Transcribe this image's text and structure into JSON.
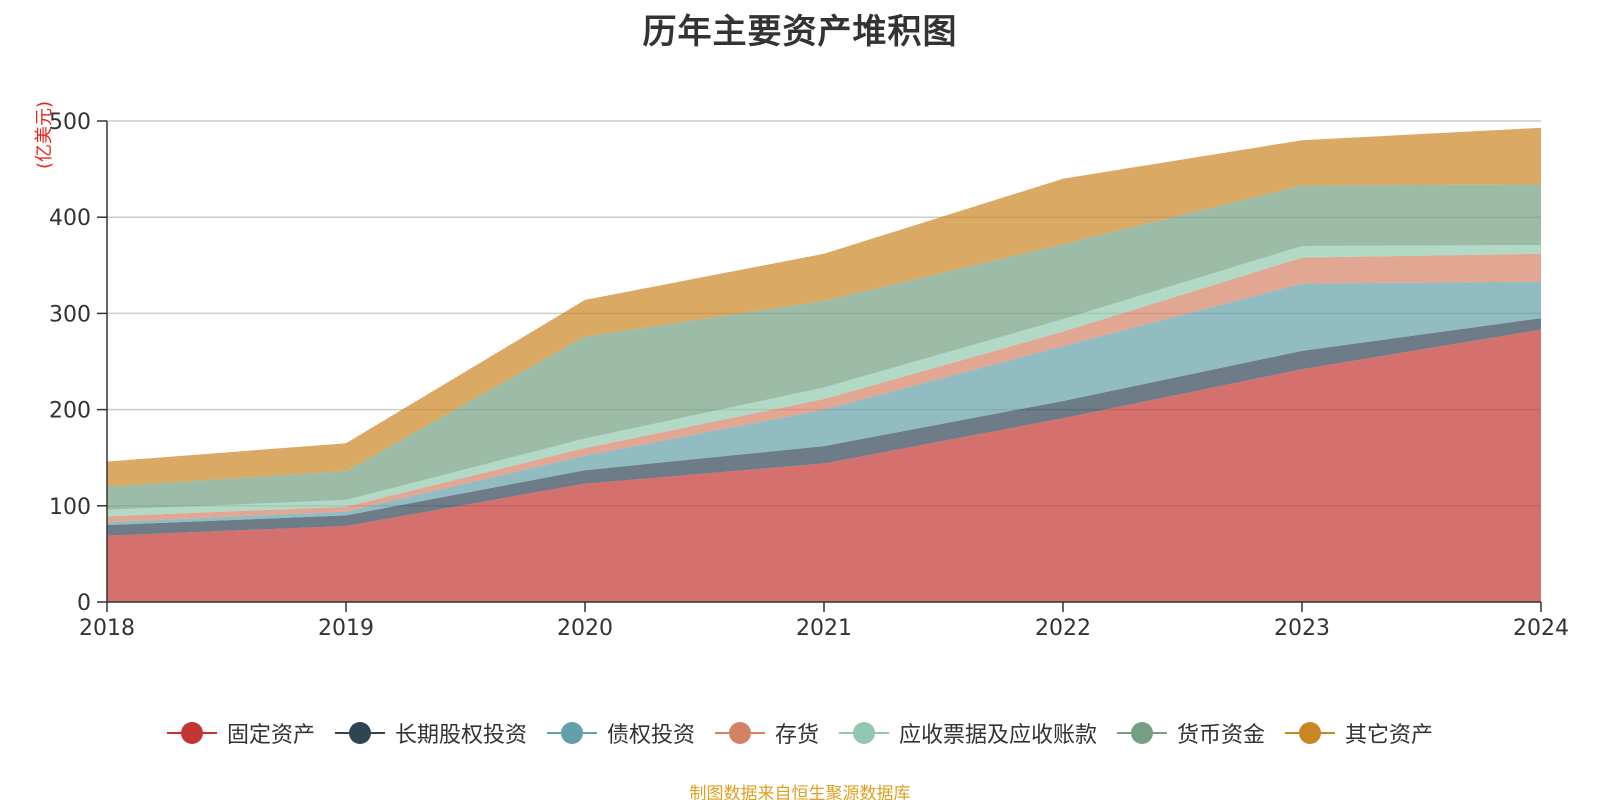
{
  "chart_data": {
    "type": "area",
    "stacked": true,
    "title": "历年主要资产堆积图",
    "ylabel": "(亿美元)",
    "xlabel": "",
    "x": [
      "2018",
      "2019",
      "2020",
      "2021",
      "2022",
      "2023",
      "2024"
    ],
    "ylim": [
      0,
      500
    ],
    "yticks": [
      "0",
      "100",
      "200",
      "300",
      "400",
      "500"
    ],
    "grid": true,
    "legend_position": "bottom",
    "series": [
      {
        "name": "固定资产",
        "color": "#c23531",
        "values": [
          69,
          79,
          123,
          144,
          191,
          242,
          283
        ]
      },
      {
        "name": "长期股权投资",
        "color": "#2f4554",
        "values": [
          11,
          11,
          14,
          18,
          18,
          19,
          12
        ]
      },
      {
        "name": "债权投资",
        "color": "#61a0a8",
        "values": [
          3,
          4,
          15,
          38,
          57,
          70,
          38
        ]
      },
      {
        "name": "存货",
        "color": "#d48265",
        "values": [
          6,
          5,
          8,
          11,
          15,
          27,
          29
        ]
      },
      {
        "name": "应收票据及应收账款",
        "color": "#91c7ae",
        "values": [
          7,
          7,
          10,
          12,
          13,
          12,
          9
        ]
      },
      {
        "name": "货币资金",
        "color": "#749f83",
        "values": [
          24,
          30,
          106,
          90,
          78,
          63,
          63
        ]
      },
      {
        "name": "其它资产",
        "color": "#ca8622",
        "values": [
          26,
          29,
          38,
          49,
          68,
          47,
          59
        ]
      }
    ],
    "source_note": "制图数据来自恒生聚源数据库"
  }
}
